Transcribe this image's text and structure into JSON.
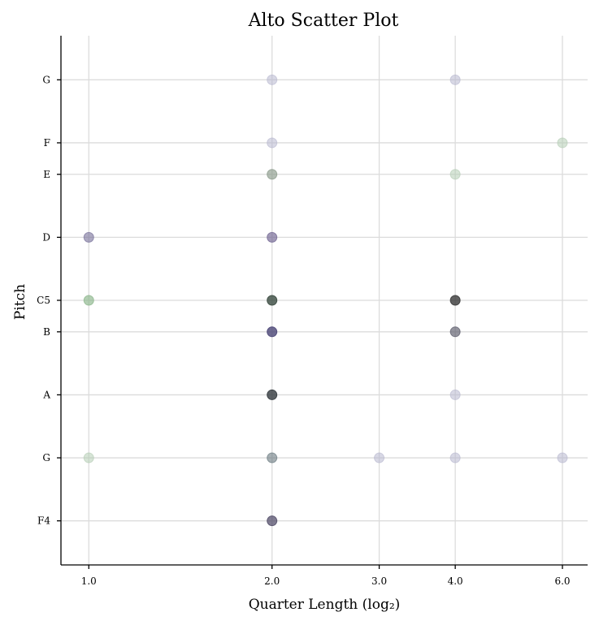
{
  "chart_data": {
    "type": "scatter",
    "title": "Alto Scatter Plot",
    "xlabel": "Quarter Length (log₂)",
    "ylabel": "Pitch",
    "x_scale": "log2",
    "x_ticks": [
      1.0,
      2.0,
      3.0,
      4.0,
      6.0
    ],
    "x_tick_labels": [
      "1.0",
      "2.0",
      "3.0",
      "4.0",
      "6.0"
    ],
    "xlim": [
      0.9,
      6.6
    ],
    "y_ticks": [
      {
        "label": "F4",
        "midi": 65
      },
      {
        "label": "G",
        "midi": 67
      },
      {
        "label": "A",
        "midi": 69
      },
      {
        "label": "B",
        "midi": 71
      },
      {
        "label": "C5",
        "midi": 72
      },
      {
        "label": "D",
        "midi": 74
      },
      {
        "label": "E",
        "midi": 76
      },
      {
        "label": "F",
        "midi": 77
      },
      {
        "label": "G",
        "midi": 79
      }
    ],
    "ylim": [
      63.6,
      80.4
    ],
    "grid": true,
    "points": [
      {
        "x": 2.0,
        "y": 79,
        "color": "#b8b8cf",
        "alpha": 0.55
      },
      {
        "x": 4.0,
        "y": 79,
        "color": "#b8b8cf",
        "alpha": 0.55
      },
      {
        "x": 2.0,
        "y": 77,
        "color": "#b8b8cf",
        "alpha": 0.55
      },
      {
        "x": 6.0,
        "y": 77,
        "color": "#b5cdb5",
        "alpha": 0.55
      },
      {
        "x": 2.0,
        "y": 76,
        "color": "#8a9a8a",
        "alpha": 0.65
      },
      {
        "x": 4.0,
        "y": 76,
        "color": "#b5cdb5",
        "alpha": 0.55
      },
      {
        "x": 1.0,
        "y": 74,
        "color": "#77709a",
        "alpha": 0.6
      },
      {
        "x": 2.0,
        "y": 74,
        "color": "#6f6390",
        "alpha": 0.65
      },
      {
        "x": 1.0,
        "y": 72,
        "color": "#8bb58b",
        "alpha": 0.65
      },
      {
        "x": 2.0,
        "y": 72,
        "color": "#3a4a40",
        "alpha": 0.8
      },
      {
        "x": 4.0,
        "y": 72,
        "color": "#3a3a3a",
        "alpha": 0.8
      },
      {
        "x": 2.0,
        "y": 71,
        "color": "#4a4575",
        "alpha": 0.8
      },
      {
        "x": 4.0,
        "y": 71,
        "color": "#5a5a6a",
        "alpha": 0.65
      },
      {
        "x": 2.0,
        "y": 69,
        "color": "#333a3e",
        "alpha": 0.8
      },
      {
        "x": 4.0,
        "y": 69,
        "color": "#b8b8cf",
        "alpha": 0.55
      },
      {
        "x": 1.0,
        "y": 67,
        "color": "#b5cdb5",
        "alpha": 0.55
      },
      {
        "x": 2.0,
        "y": 67,
        "color": "#6a7a80",
        "alpha": 0.6
      },
      {
        "x": 3.0,
        "y": 67,
        "color": "#b8b8cf",
        "alpha": 0.55
      },
      {
        "x": 4.0,
        "y": 67,
        "color": "#b8b8cf",
        "alpha": 0.55
      },
      {
        "x": 6.0,
        "y": 67,
        "color": "#b8b8cf",
        "alpha": 0.55
      },
      {
        "x": 2.0,
        "y": 65,
        "color": "#4a4562",
        "alpha": 0.7
      }
    ]
  }
}
